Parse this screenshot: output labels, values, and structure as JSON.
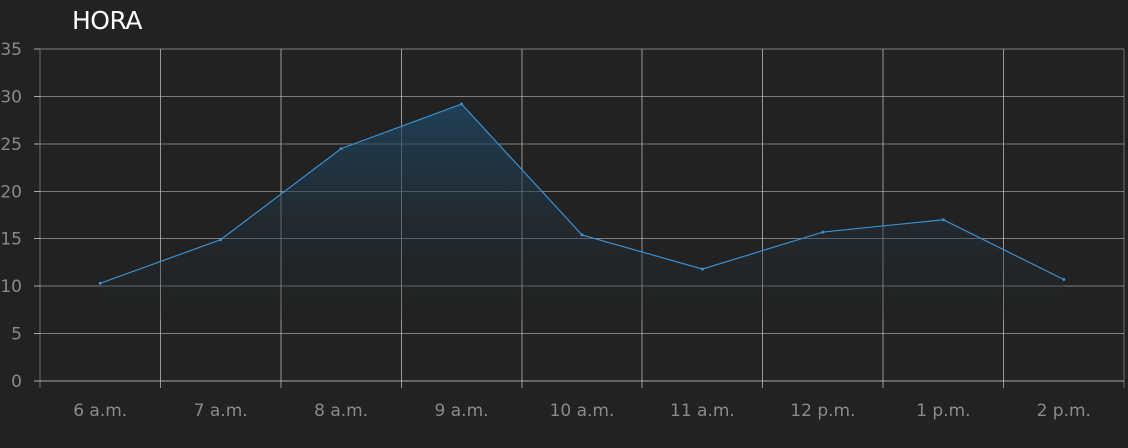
{
  "chart_data": {
    "type": "area",
    "title": "HORA",
    "categories": [
      "6 a.m.",
      "7 a.m.",
      "8 a.m.",
      "9 a.m.",
      "10 a.m.",
      "11 a.m.",
      "12 p.m.",
      "1 p.m.",
      "2 p.m."
    ],
    "values": [
      10.3,
      14.9,
      24.5,
      29.2,
      15.4,
      11.8,
      15.7,
      17.0,
      10.7
    ],
    "ylim": [
      0,
      35
    ],
    "yticks": [
      0,
      5,
      10,
      15,
      20,
      25,
      30,
      35
    ],
    "grid": true,
    "colors": {
      "background": "#222222",
      "grid": "#c8c8c8",
      "line": "#3a8fd0",
      "fill_top": "#1f4a6a",
      "tick_label": "#8a8a8a",
      "title": "#ffffff"
    }
  }
}
